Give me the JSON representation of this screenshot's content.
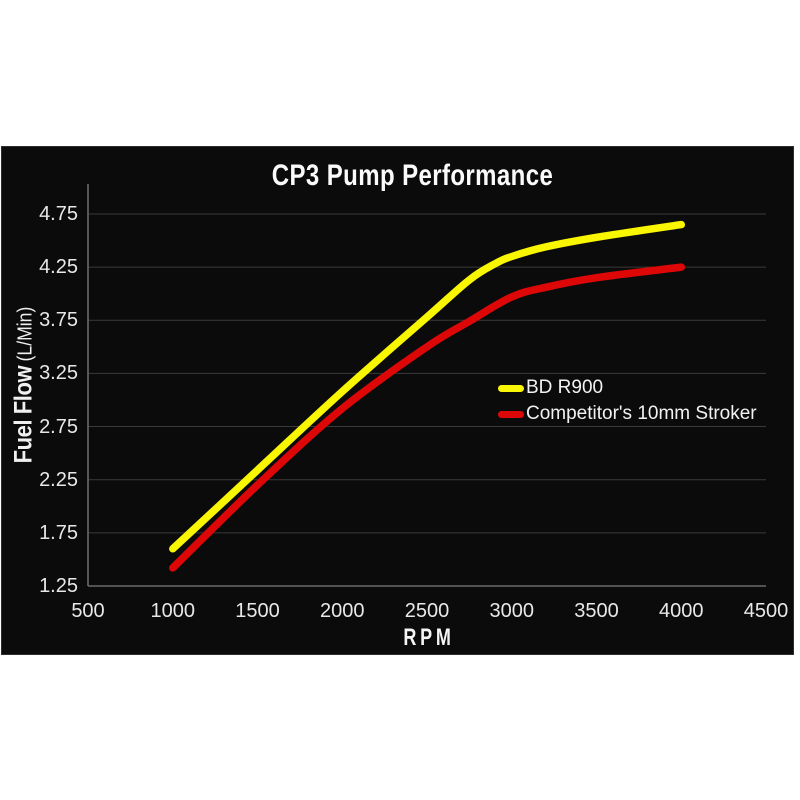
{
  "page": {
    "background": "#ffffff"
  },
  "panel": {
    "background": "#0b0b0b",
    "border_color": "#2e2e2e"
  },
  "chart_data": {
    "type": "line",
    "title": "CP3 Pump Performance",
    "xlabel": "RPM",
    "ylabel": "Fuel Flow (L/Min)",
    "ylabel_parts": {
      "main": "Fuel Flow",
      "units": "(L/Min)"
    },
    "x_ticks": [
      500,
      1000,
      1500,
      2000,
      2500,
      3000,
      3500,
      4000,
      4500
    ],
    "y_ticks": [
      "1.25",
      "1.75",
      "2.25",
      "2.75",
      "3.25",
      "3.75",
      "4.25",
      "4.75"
    ],
    "xlim": [
      500,
      4500
    ],
    "ylim": [
      1.25,
      5.03
    ],
    "grid": "horizontal-only",
    "legend_position": "center-right",
    "colors": {
      "text": "#e8e8e8",
      "grid": "#3a3a3a",
      "axis": "#6a6a6a",
      "title": "#fafafa"
    },
    "series": [
      {
        "name": "BD R900",
        "color": "#f9f602",
        "x": [
          1000,
          1500,
          2000,
          2500,
          2750,
          2900,
          3000,
          3200,
          3500,
          4000
        ],
        "values": [
          1.6,
          2.34,
          3.08,
          3.78,
          4.13,
          4.28,
          4.35,
          4.44,
          4.53,
          4.65
        ]
      },
      {
        "name": "Competitor's 10mm Stroker",
        "color": "#dd0707",
        "x": [
          1000,
          1500,
          2000,
          2500,
          2750,
          3000,
          3200,
          3500,
          4000
        ],
        "values": [
          1.42,
          2.2,
          2.92,
          3.5,
          3.74,
          3.97,
          4.06,
          4.15,
          4.25
        ]
      }
    ]
  }
}
